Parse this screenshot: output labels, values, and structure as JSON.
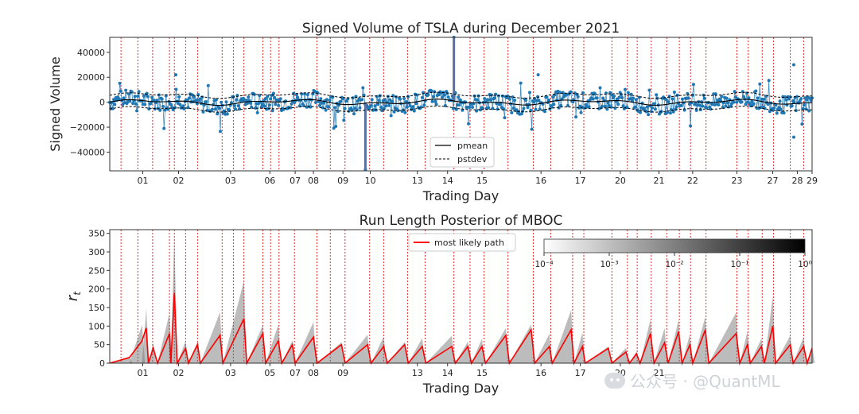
{
  "chart_data": [
    {
      "type": "line",
      "title": "Signed Volume of TSLA during December 2021",
      "xlabel": "Trading Day",
      "ylabel": "Signed Volume",
      "ylim": [
        -55000,
        52000
      ],
      "yticks": [
        40000,
        20000,
        0,
        -20000,
        -40000
      ],
      "ytick_labels": [
        "40000",
        "20000",
        "0",
        "−20000",
        "−40000"
      ],
      "xlim": [
        0,
        1
      ],
      "xticks": [
        {
          "label": "01",
          "pos": 0.047
        },
        {
          "label": "02",
          "pos": 0.098
        },
        {
          "label": "03",
          "pos": 0.172
        },
        {
          "label": "06",
          "pos": 0.228
        },
        {
          "label": "07",
          "pos": 0.264
        },
        {
          "label": "08",
          "pos": 0.29
        },
        {
          "label": "09",
          "pos": 0.332
        },
        {
          "label": "10",
          "pos": 0.371
        },
        {
          "label": "13",
          "pos": 0.438
        },
        {
          "label": "14",
          "pos": 0.481
        },
        {
          "label": "15",
          "pos": 0.53
        },
        {
          "label": "16",
          "pos": 0.614
        },
        {
          "label": "17",
          "pos": 0.67
        },
        {
          "label": "20",
          "pos": 0.727
        },
        {
          "label": "21",
          "pos": 0.782
        },
        {
          "label": "22",
          "pos": 0.83
        },
        {
          "label": "23",
          "pos": 0.893
        },
        {
          "label": "27",
          "pos": 0.944
        },
        {
          "label": "28",
          "pos": 0.979
        },
        {
          "label": "29",
          "pos": 1.0
        }
      ],
      "changepoints": [
        0.016,
        0.04,
        0.061,
        0.085,
        0.092,
        0.108,
        0.125,
        0.16,
        0.176,
        0.191,
        0.218,
        0.229,
        0.241,
        0.263,
        0.295,
        0.314,
        0.335,
        0.37,
        0.39,
        0.424,
        0.449,
        0.49,
        0.513,
        0.533,
        0.567,
        0.603,
        0.628,
        0.659,
        0.675,
        0.715,
        0.737,
        0.751,
        0.771,
        0.793,
        0.811,
        0.827,
        0.849,
        0.893,
        0.909,
        0.929,
        0.945,
        0.969,
        0.988
      ],
      "series": [
        {
          "name": "pmean",
          "style": "solid",
          "color": "#000000"
        },
        {
          "name": "pstdev",
          "style": "dashed",
          "color": "#000000"
        },
        {
          "name": "signed volume",
          "style": "markers",
          "color": "#1f77b4"
        }
      ],
      "legend_location": "lower-center"
    },
    {
      "type": "heatmap",
      "title": "Run Length Posterior of MBOC",
      "xlabel": "Trading Day",
      "ylabel": "r_t",
      "ylim": [
        0,
        360
      ],
      "yticks": [
        0,
        50,
        100,
        150,
        200,
        250,
        300,
        350
      ],
      "xlim": [
        0,
        1
      ],
      "xticks": [
        {
          "label": "01",
          "pos": 0.047
        },
        {
          "label": "02",
          "pos": 0.098
        },
        {
          "label": "03",
          "pos": 0.172
        },
        {
          "label": "05",
          "pos": 0.228
        },
        {
          "label": "07",
          "pos": 0.264
        },
        {
          "label": "08",
          "pos": 0.29
        },
        {
          "label": "09",
          "pos": 0.332
        },
        {
          "label": "13",
          "pos": 0.438
        },
        {
          "label": "14",
          "pos": 0.481
        },
        {
          "label": "15",
          "pos": 0.53
        },
        {
          "label": "16",
          "pos": 0.614
        },
        {
          "label": "17",
          "pos": 0.67
        },
        {
          "label": "20",
          "pos": 0.727
        },
        {
          "label": "21",
          "pos": 0.782
        }
      ],
      "most_likely_path": [
        [
          0,
          0
        ],
        [
          0.028,
          15
        ],
        [
          0.046,
          60
        ],
        [
          0.052,
          95
        ],
        [
          0.055,
          0
        ],
        [
          0.062,
          40
        ],
        [
          0.068,
          0
        ],
        [
          0.085,
          80
        ],
        [
          0.087,
          0
        ],
        [
          0.092,
          190
        ],
        [
          0.096,
          0
        ],
        [
          0.108,
          40
        ],
        [
          0.112,
          0
        ],
        [
          0.125,
          50
        ],
        [
          0.129,
          0
        ],
        [
          0.157,
          75
        ],
        [
          0.161,
          0
        ],
        [
          0.191,
          120
        ],
        [
          0.195,
          0
        ],
        [
          0.218,
          80
        ],
        [
          0.222,
          0
        ],
        [
          0.24,
          60
        ],
        [
          0.245,
          0
        ],
        [
          0.26,
          50
        ],
        [
          0.264,
          0
        ],
        [
          0.29,
          70
        ],
        [
          0.295,
          0
        ],
        [
          0.33,
          50
        ],
        [
          0.335,
          0
        ],
        [
          0.367,
          50
        ],
        [
          0.372,
          0
        ],
        [
          0.39,
          45
        ],
        [
          0.395,
          0
        ],
        [
          0.42,
          50
        ],
        [
          0.425,
          0
        ],
        [
          0.445,
          45
        ],
        [
          0.45,
          0
        ],
        [
          0.487,
          45
        ],
        [
          0.492,
          0
        ],
        [
          0.51,
          45
        ],
        [
          0.515,
          0
        ],
        [
          0.53,
          45
        ],
        [
          0.535,
          0
        ],
        [
          0.564,
          75
        ],
        [
          0.569,
          0
        ],
        [
          0.6,
          90
        ],
        [
          0.605,
          0
        ],
        [
          0.626,
          45
        ],
        [
          0.63,
          0
        ],
        [
          0.657,
          90
        ],
        [
          0.661,
          0
        ],
        [
          0.673,
          45
        ],
        [
          0.677,
          0
        ],
        [
          0.71,
          40
        ],
        [
          0.715,
          0
        ],
        [
          0.735,
          30
        ],
        [
          0.74,
          0
        ],
        [
          0.75,
          25
        ],
        [
          0.755,
          0
        ],
        [
          0.77,
          80
        ],
        [
          0.775,
          0
        ],
        [
          0.79,
          55
        ],
        [
          0.795,
          0
        ],
        [
          0.81,
          85
        ],
        [
          0.815,
          0
        ],
        [
          0.826,
          50
        ],
        [
          0.83,
          0
        ],
        [
          0.848,
          90
        ],
        [
          0.853,
          0
        ],
        [
          0.892,
          80
        ],
        [
          0.897,
          0
        ],
        [
          0.908,
          50
        ],
        [
          0.912,
          0
        ],
        [
          0.928,
          45
        ],
        [
          0.932,
          0
        ],
        [
          0.944,
          100
        ],
        [
          0.948,
          0
        ],
        [
          0.969,
          50
        ],
        [
          0.973,
          0
        ],
        [
          0.988,
          45
        ],
        [
          0.993,
          0
        ],
        [
          1.0,
          40
        ]
      ],
      "colorbar": {
        "scale": "log",
        "range": [
          0.0001,
          1
        ],
        "ticks": [
          "10⁻⁴",
          "10⁻³",
          "10⁻²",
          "10⁻¹",
          "10⁰"
        ]
      },
      "series": [
        {
          "name": "most likely path",
          "color": "#ff0000"
        }
      ],
      "legend_location": "top-left"
    }
  ],
  "watermark": {
    "text": "公众号 · @QuantML"
  }
}
